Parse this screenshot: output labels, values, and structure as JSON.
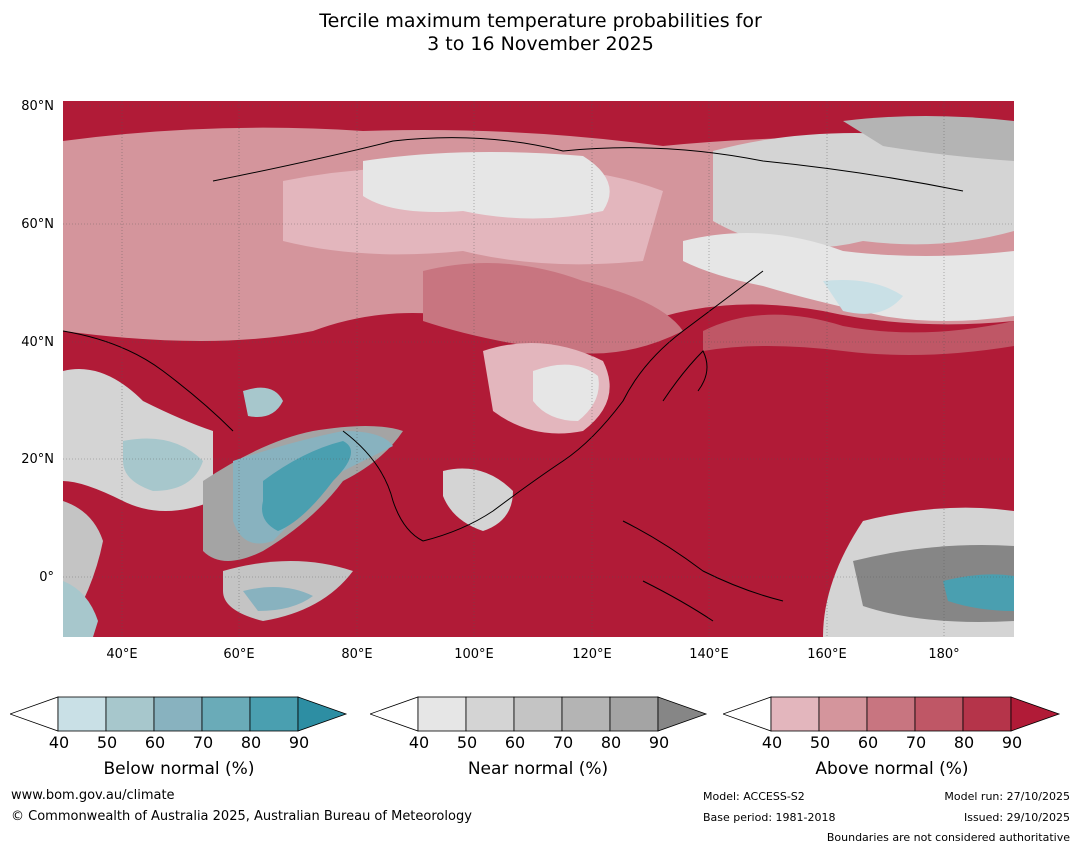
{
  "title": {
    "line1": "Tercile maximum temperature probabilities for",
    "line2": "3 to 16 November 2025"
  },
  "map": {
    "lat_labels": [
      "80°N",
      "60°N",
      "40°N",
      "20°N",
      "0°"
    ],
    "lon_labels": [
      "40°E",
      "60°E",
      "80°E",
      "100°E",
      "120°E",
      "140°E",
      "160°E",
      "180°"
    ],
    "lat_range": [
      -10,
      80
    ],
    "lon_range": [
      30,
      192
    ]
  },
  "colorbars": {
    "below": {
      "label": "Below normal (%)",
      "ticks": [
        "40",
        "50",
        "60",
        "70",
        "80",
        "90"
      ],
      "colors": [
        "#ffffff",
        "#c9e0e6",
        "#a7c7cc",
        "#88b2bf",
        "#6aabb8",
        "#4a9fb0",
        "#2d8ea3"
      ]
    },
    "near": {
      "label": "Near normal (%)",
      "ticks": [
        "40",
        "50",
        "60",
        "70",
        "80",
        "90"
      ],
      "colors": [
        "#ffffff",
        "#e6e6e6",
        "#d4d4d4",
        "#c4c4c4",
        "#b4b4b4",
        "#a4a4a4",
        "#868686"
      ]
    },
    "above": {
      "label": "Above normal (%)",
      "ticks": [
        "40",
        "50",
        "60",
        "70",
        "80",
        "90"
      ],
      "colors": [
        "#ffffff",
        "#e3b6bd",
        "#d4959c",
        "#c87580",
        "#bf5766",
        "#b5344a",
        "#b11b37"
      ]
    }
  },
  "footer": {
    "url": "www.bom.gov.au/climate",
    "copyright": "© Commonwealth of Australia 2025, Australian Bureau of Meteorology",
    "model": "Model: ACCESS-S2",
    "base_period": "Base period: 1981-2018",
    "model_run": "Model run: 27/10/2025",
    "issued": "Issued: 29/10/2025",
    "boundaries": "Boundaries are not considered authoritative"
  }
}
